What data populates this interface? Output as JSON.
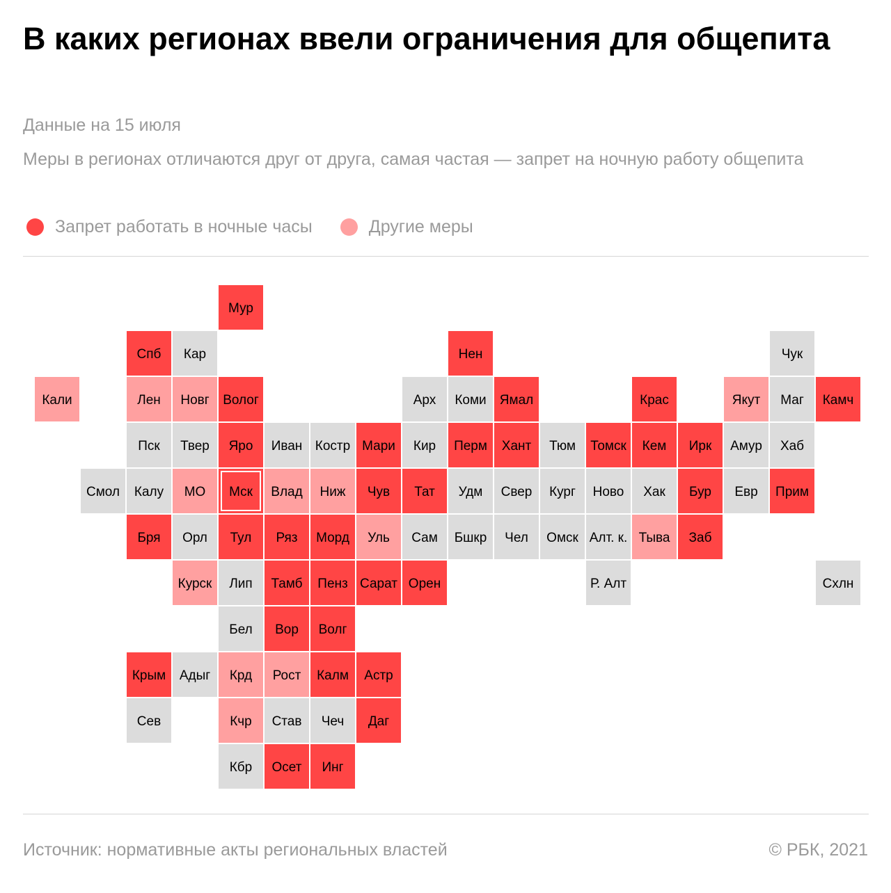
{
  "header": {
    "title": "В каких регионах ввели ограничения для общепита",
    "date": "Данные на 15 июля",
    "subtitle": "Меры в регионах отличаются друг от друга, самая частая — запрет на ночную работу общепита"
  },
  "legend": {
    "night_ban": "Запрет работать в ночные часы",
    "other": "Другие меры"
  },
  "colors": {
    "night_ban": "#ff4545",
    "other": "#ffa0a0",
    "none": "#dcdcdc",
    "text": "#000000",
    "muted": "#9a9a9a"
  },
  "footer": {
    "source": "Источник:  нормативные акты региональных властей",
    "copyright": "©  РБК, 2021"
  },
  "chart_data": {
    "type": "heatmap",
    "categories": [
      "night_ban",
      "other",
      "none"
    ],
    "regions": [
      {
        "label": "Мур",
        "row": 0,
        "col": 4,
        "status": "night_ban"
      },
      {
        "label": "Спб",
        "row": 1,
        "col": 2,
        "status": "night_ban"
      },
      {
        "label": "Кар",
        "row": 1,
        "col": 3,
        "status": "none"
      },
      {
        "label": "Нен",
        "row": 1,
        "col": 9,
        "status": "night_ban"
      },
      {
        "label": "Чук",
        "row": 1,
        "col": 16,
        "status": "none"
      },
      {
        "label": "Кали",
        "row": 2,
        "col": 0,
        "status": "other"
      },
      {
        "label": "Лен",
        "row": 2,
        "col": 2,
        "status": "other"
      },
      {
        "label": "Новг",
        "row": 2,
        "col": 3,
        "status": "other"
      },
      {
        "label": "Волог",
        "row": 2,
        "col": 4,
        "status": "night_ban"
      },
      {
        "label": "Арх",
        "row": 2,
        "col": 8,
        "status": "none"
      },
      {
        "label": "Коми",
        "row": 2,
        "col": 9,
        "status": "none"
      },
      {
        "label": "Ямал",
        "row": 2,
        "col": 10,
        "status": "night_ban"
      },
      {
        "label": "Крас",
        "row": 2,
        "col": 13,
        "status": "night_ban"
      },
      {
        "label": "Якут",
        "row": 2,
        "col": 15,
        "status": "other"
      },
      {
        "label": "Маг",
        "row": 2,
        "col": 16,
        "status": "none"
      },
      {
        "label": "Камч",
        "row": 2,
        "col": 17,
        "status": "night_ban"
      },
      {
        "label": "Пск",
        "row": 3,
        "col": 2,
        "status": "none"
      },
      {
        "label": "Твер",
        "row": 3,
        "col": 3,
        "status": "none"
      },
      {
        "label": "Яро",
        "row": 3,
        "col": 4,
        "status": "night_ban"
      },
      {
        "label": "Иван",
        "row": 3,
        "col": 5,
        "status": "none"
      },
      {
        "label": "Костр",
        "row": 3,
        "col": 6,
        "status": "none"
      },
      {
        "label": "Мари",
        "row": 3,
        "col": 7,
        "status": "night_ban"
      },
      {
        "label": "Кир",
        "row": 3,
        "col": 8,
        "status": "none"
      },
      {
        "label": "Перм",
        "row": 3,
        "col": 9,
        "status": "night_ban"
      },
      {
        "label": "Хант",
        "row": 3,
        "col": 10,
        "status": "night_ban"
      },
      {
        "label": "Тюм",
        "row": 3,
        "col": 11,
        "status": "none"
      },
      {
        "label": "Томск",
        "row": 3,
        "col": 12,
        "status": "night_ban"
      },
      {
        "label": "Кем",
        "row": 3,
        "col": 13,
        "status": "night_ban"
      },
      {
        "label": "Ирк",
        "row": 3,
        "col": 14,
        "status": "night_ban"
      },
      {
        "label": "Амур",
        "row": 3,
        "col": 15,
        "status": "none"
      },
      {
        "label": "Хаб",
        "row": 3,
        "col": 16,
        "status": "none"
      },
      {
        "label": "Смол",
        "row": 4,
        "col": 1,
        "status": "none"
      },
      {
        "label": "Калу",
        "row": 4,
        "col": 2,
        "status": "none"
      },
      {
        "label": "МО",
        "row": 4,
        "col": 3,
        "status": "other"
      },
      {
        "label": "Мск",
        "row": 4,
        "col": 4,
        "status": "night_ban",
        "framed": true
      },
      {
        "label": "Влад",
        "row": 4,
        "col": 5,
        "status": "other"
      },
      {
        "label": "Ниж",
        "row": 4,
        "col": 6,
        "status": "other"
      },
      {
        "label": "Чув",
        "row": 4,
        "col": 7,
        "status": "night_ban"
      },
      {
        "label": "Тат",
        "row": 4,
        "col": 8,
        "status": "night_ban"
      },
      {
        "label": "Удм",
        "row": 4,
        "col": 9,
        "status": "none"
      },
      {
        "label": "Свер",
        "row": 4,
        "col": 10,
        "status": "none"
      },
      {
        "label": "Кург",
        "row": 4,
        "col": 11,
        "status": "none"
      },
      {
        "label": "Ново",
        "row": 4,
        "col": 12,
        "status": "none"
      },
      {
        "label": "Хак",
        "row": 4,
        "col": 13,
        "status": "none"
      },
      {
        "label": "Бур",
        "row": 4,
        "col": 14,
        "status": "night_ban"
      },
      {
        "label": "Евр",
        "row": 4,
        "col": 15,
        "status": "none"
      },
      {
        "label": "Прим",
        "row": 4,
        "col": 16,
        "status": "night_ban"
      },
      {
        "label": "Бря",
        "row": 5,
        "col": 2,
        "status": "night_ban"
      },
      {
        "label": "Орл",
        "row": 5,
        "col": 3,
        "status": "none"
      },
      {
        "label": "Тул",
        "row": 5,
        "col": 4,
        "status": "night_ban"
      },
      {
        "label": "Ряз",
        "row": 5,
        "col": 5,
        "status": "night_ban"
      },
      {
        "label": "Морд",
        "row": 5,
        "col": 6,
        "status": "night_ban"
      },
      {
        "label": "Уль",
        "row": 5,
        "col": 7,
        "status": "other"
      },
      {
        "label": "Сам",
        "row": 5,
        "col": 8,
        "status": "none"
      },
      {
        "label": "Бшкр",
        "row": 5,
        "col": 9,
        "status": "none"
      },
      {
        "label": "Чел",
        "row": 5,
        "col": 10,
        "status": "none"
      },
      {
        "label": "Омск",
        "row": 5,
        "col": 11,
        "status": "none"
      },
      {
        "label": "Алт. к.",
        "row": 5,
        "col": 12,
        "status": "none"
      },
      {
        "label": "Тыва",
        "row": 5,
        "col": 13,
        "status": "other"
      },
      {
        "label": "Заб",
        "row": 5,
        "col": 14,
        "status": "night_ban"
      },
      {
        "label": "Курск",
        "row": 6,
        "col": 3,
        "status": "other"
      },
      {
        "label": "Лип",
        "row": 6,
        "col": 4,
        "status": "none"
      },
      {
        "label": "Тамб",
        "row": 6,
        "col": 5,
        "status": "night_ban"
      },
      {
        "label": "Пенз",
        "row": 6,
        "col": 6,
        "status": "night_ban"
      },
      {
        "label": "Сарат",
        "row": 6,
        "col": 7,
        "status": "night_ban"
      },
      {
        "label": "Орен",
        "row": 6,
        "col": 8,
        "status": "night_ban"
      },
      {
        "label": "Р. Алт",
        "row": 6,
        "col": 12,
        "status": "none"
      },
      {
        "label": "Схлн",
        "row": 6,
        "col": 17,
        "status": "none"
      },
      {
        "label": "Бел",
        "row": 7,
        "col": 4,
        "status": "none"
      },
      {
        "label": "Вор",
        "row": 7,
        "col": 5,
        "status": "night_ban"
      },
      {
        "label": "Волг",
        "row": 7,
        "col": 6,
        "status": "night_ban"
      },
      {
        "label": "Крым",
        "row": 8,
        "col": 2,
        "status": "night_ban"
      },
      {
        "label": "Адыг",
        "row": 8,
        "col": 3,
        "status": "none"
      },
      {
        "label": "Крд",
        "row": 8,
        "col": 4,
        "status": "other"
      },
      {
        "label": "Рост",
        "row": 8,
        "col": 5,
        "status": "other"
      },
      {
        "label": "Калм",
        "row": 8,
        "col": 6,
        "status": "night_ban"
      },
      {
        "label": "Астр",
        "row": 8,
        "col": 7,
        "status": "night_ban"
      },
      {
        "label": "Сев",
        "row": 9,
        "col": 2,
        "status": "none"
      },
      {
        "label": "Кчр",
        "row": 9,
        "col": 4,
        "status": "other"
      },
      {
        "label": "Став",
        "row": 9,
        "col": 5,
        "status": "none"
      },
      {
        "label": "Чеч",
        "row": 9,
        "col": 6,
        "status": "none"
      },
      {
        "label": "Даг",
        "row": 9,
        "col": 7,
        "status": "night_ban"
      },
      {
        "label": "Кбр",
        "row": 10,
        "col": 4,
        "status": "none"
      },
      {
        "label": "Осет",
        "row": 10,
        "col": 5,
        "status": "night_ban"
      },
      {
        "label": "Инг",
        "row": 10,
        "col": 6,
        "status": "night_ban"
      }
    ]
  }
}
